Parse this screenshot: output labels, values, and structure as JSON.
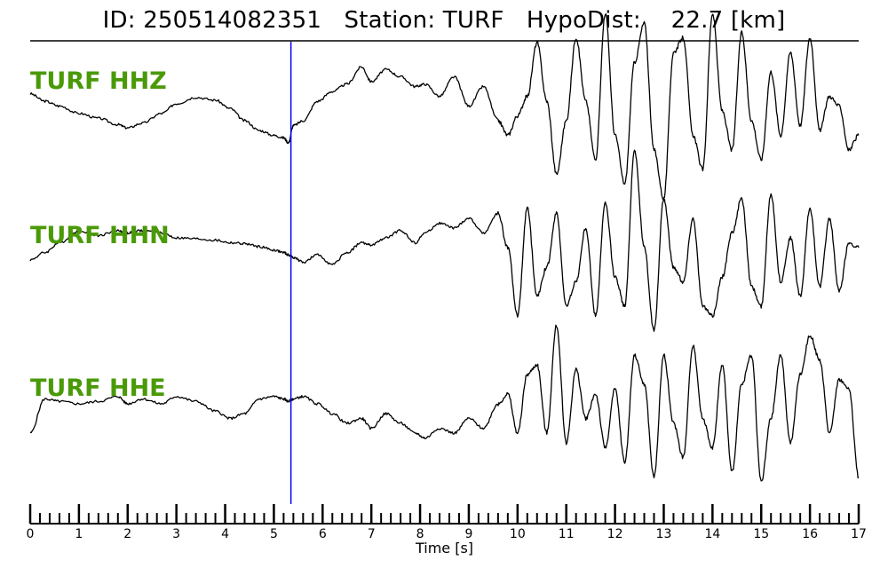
{
  "header": {
    "id_label": "ID:",
    "id_value": "250514082351",
    "station_label": "Station:",
    "station_value": "TURF",
    "hypodist_label": "HypoDist:",
    "hypodist_value": "22.7",
    "hypodist_unit": "[km]"
  },
  "colors": {
    "trace": "#000000",
    "label": "#4a9a08",
    "pick_line": "#0000ff",
    "axis": "#000000"
  },
  "chart_data": {
    "type": "line",
    "title": "ID: 250514082351   Station: TURF   HypoDist:    22.7 [km]",
    "xlabel": "Time [s]",
    "ylabel": "",
    "xlim": [
      0,
      17
    ],
    "x_ticks": [
      0,
      1,
      2,
      3,
      4,
      5,
      6,
      7,
      8,
      9,
      10,
      11,
      12,
      13,
      14,
      15,
      16,
      17
    ],
    "minor_tick_step": 0.2,
    "grid": false,
    "legend": "none",
    "vertical_marker": {
      "x": 5.35,
      "color": "#0000ff"
    },
    "series": [
      {
        "name": "TURF HHZ",
        "x": [
          0,
          0.3,
          0.6,
          1.0,
          1.4,
          1.8,
          2.0,
          2.3,
          2.7,
          3.0,
          3.4,
          3.8,
          4.1,
          4.4,
          4.7,
          5.0,
          5.2,
          5.3,
          5.4,
          5.6,
          5.9,
          6.2,
          6.5,
          6.8,
          7.0,
          7.3,
          7.6,
          7.9,
          8.1,
          8.4,
          8.7,
          9.0,
          9.3,
          9.6,
          9.8,
          10.0,
          10.2,
          10.4,
          10.6,
          10.8,
          11.0,
          11.2,
          11.4,
          11.6,
          11.8,
          12.0,
          12.2,
          12.4,
          12.6,
          12.8,
          13.0,
          13.2,
          13.4,
          13.6,
          13.8,
          14.0,
          14.2,
          14.4,
          14.6,
          14.8,
          15.0,
          15.2,
          15.4,
          15.6,
          15.8,
          16.0,
          16.2,
          16.4,
          16.6,
          16.8,
          17.0
        ],
        "values": [
          0.35,
          0.2,
          0.1,
          -0.05,
          -0.15,
          -0.28,
          -0.35,
          -0.25,
          -0.05,
          0.15,
          0.28,
          0.22,
          0.05,
          -0.2,
          -0.4,
          -0.5,
          -0.55,
          -0.65,
          -0.3,
          -0.2,
          0.2,
          0.4,
          0.55,
          0.9,
          0.6,
          0.85,
          0.7,
          0.5,
          0.55,
          0.3,
          0.7,
          0.1,
          0.5,
          -0.2,
          -0.5,
          -0.1,
          0.3,
          1.4,
          0.2,
          -1.3,
          -0.2,
          1.5,
          0.2,
          -1.0,
          2.0,
          -0.5,
          -1.5,
          1.0,
          1.8,
          -0.8,
          -1.8,
          1.2,
          1.5,
          -0.5,
          -1.2,
          2.0,
          0.0,
          -0.8,
          1.6,
          -0.2,
          -1.0,
          0.8,
          -0.5,
          1.2,
          -0.3,
          1.5,
          -0.4,
          0.3,
          0.1,
          -0.8,
          -0.5
        ]
      },
      {
        "name": "TURF HHN",
        "x": [
          0,
          0.3,
          0.6,
          1.0,
          1.4,
          1.8,
          2.0,
          2.3,
          2.7,
          3.0,
          3.4,
          3.8,
          4.1,
          4.4,
          4.7,
          5.0,
          5.2,
          5.3,
          5.4,
          5.6,
          5.9,
          6.2,
          6.5,
          6.8,
          7.0,
          7.3,
          7.6,
          7.9,
          8.1,
          8.4,
          8.7,
          9.0,
          9.3,
          9.6,
          9.8,
          10.0,
          10.2,
          10.4,
          10.6,
          10.8,
          11.0,
          11.2,
          11.4,
          11.6,
          11.8,
          12.0,
          12.2,
          12.4,
          12.6,
          12.8,
          13.0,
          13.2,
          13.4,
          13.6,
          13.8,
          14.0,
          14.2,
          14.4,
          14.6,
          14.8,
          15.0,
          15.2,
          15.4,
          15.6,
          15.8,
          16.0,
          16.2,
          16.4,
          16.6,
          16.8,
          17.0
        ],
        "values": [
          -0.05,
          0.1,
          0.3,
          0.55,
          0.45,
          0.55,
          0.5,
          0.55,
          0.5,
          0.4,
          0.38,
          0.35,
          0.3,
          0.28,
          0.22,
          0.15,
          0.1,
          0.05,
          0.0,
          -0.1,
          0.05,
          -0.15,
          0.1,
          0.3,
          0.25,
          0.4,
          0.55,
          0.3,
          0.5,
          0.7,
          0.6,
          0.8,
          0.5,
          0.9,
          0.2,
          -1.2,
          1.0,
          -0.8,
          -0.2,
          0.9,
          -1.0,
          -0.5,
          0.6,
          -1.2,
          1.1,
          -0.4,
          -1.0,
          2.2,
          0.2,
          -1.5,
          1.2,
          -0.2,
          -0.5,
          0.8,
          -1.0,
          -1.2,
          -0.4,
          0.5,
          1.2,
          -0.6,
          -1.0,
          1.3,
          -0.5,
          0.4,
          -0.8,
          1.0,
          -0.6,
          0.8,
          -0.7,
          0.3,
          0.2
        ]
      },
      {
        "name": "TURF HHE",
        "x": [
          0,
          0.3,
          0.6,
          1.0,
          1.4,
          1.8,
          2.0,
          2.3,
          2.7,
          3.0,
          3.4,
          3.8,
          4.1,
          4.4,
          4.7,
          5.0,
          5.2,
          5.3,
          5.4,
          5.6,
          5.9,
          6.2,
          6.5,
          6.8,
          7.0,
          7.3,
          7.6,
          7.9,
          8.1,
          8.4,
          8.7,
          9.0,
          9.3,
          9.6,
          9.8,
          10.0,
          10.2,
          10.4,
          10.6,
          10.8,
          11.0,
          11.2,
          11.4,
          11.6,
          11.8,
          12.0,
          12.2,
          12.4,
          12.6,
          12.8,
          13.0,
          13.2,
          13.4,
          13.6,
          13.8,
          14.0,
          14.2,
          14.4,
          14.6,
          14.8,
          15.0,
          15.2,
          15.4,
          15.6,
          15.8,
          16.0,
          16.2,
          16.4,
          16.6,
          16.8,
          17.0
        ],
        "values": [
          -0.6,
          0.1,
          0.05,
          0.0,
          0.05,
          0.15,
          0.0,
          0.1,
          0.0,
          0.15,
          0.05,
          -0.15,
          -0.3,
          -0.2,
          0.1,
          0.15,
          0.1,
          0.05,
          0.1,
          0.15,
          0.0,
          -0.2,
          -0.4,
          -0.3,
          -0.5,
          -0.2,
          -0.4,
          -0.6,
          -0.7,
          -0.5,
          -0.6,
          -0.3,
          -0.5,
          0.0,
          0.2,
          -0.6,
          0.6,
          0.8,
          -0.6,
          1.6,
          -0.8,
          0.7,
          -0.3,
          0.2,
          -0.9,
          0.3,
          -1.2,
          1.0,
          0.4,
          -1.5,
          1.0,
          -0.4,
          -1.1,
          1.2,
          -0.3,
          -0.9,
          0.8,
          -1.4,
          0.4,
          1.0,
          -1.6,
          -0.3,
          1.0,
          -0.8,
          0.6,
          1.4,
          0.9,
          -0.6,
          0.5,
          0.3,
          -1.5
        ]
      }
    ]
  }
}
